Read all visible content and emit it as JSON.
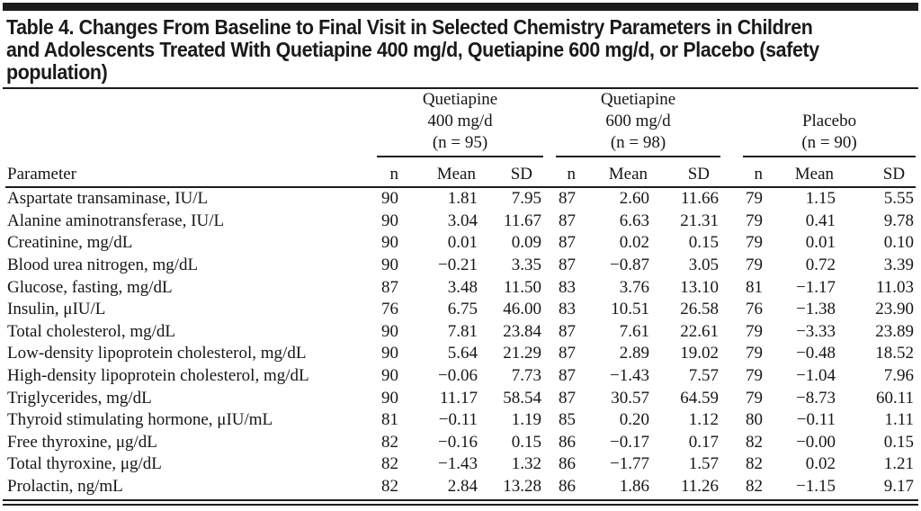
{
  "table": {
    "title_lines": [
      "Table 4. Changes From Baseline to Final Visit in Selected Chemistry Parameters in Children",
      "and Adolescents Treated With Quetiapine 400 mg/d, Quetiapine 600 mg/d, or Placebo (safety",
      "population)"
    ],
    "param_header": "Parameter",
    "sub_headers": [
      "n",
      "Mean",
      "SD"
    ],
    "groups": [
      {
        "lines": [
          "Quetiapine",
          "400 mg/d",
          "(n = 95)"
        ]
      },
      {
        "lines": [
          "Quetiapine",
          "600 mg/d",
          "(n = 98)"
        ]
      },
      {
        "lines": [
          "Placebo",
          "(n = 90)"
        ]
      }
    ],
    "rows": [
      {
        "parameter": "Aspartate transaminase, IU/L",
        "values": [
          "90",
          "1.81",
          "7.95",
          "87",
          "2.60",
          "11.66",
          "79",
          "1.15",
          "5.55"
        ]
      },
      {
        "parameter": "Alanine aminotransferase, IU/L",
        "values": [
          "90",
          "3.04",
          "11.67",
          "87",
          "6.63",
          "21.31",
          "79",
          "0.41",
          "9.78"
        ]
      },
      {
        "parameter": "Creatinine, mg/dL",
        "values": [
          "90",
          "0.01",
          "0.09",
          "87",
          "0.02",
          "0.15",
          "79",
          "0.01",
          "0.10"
        ]
      },
      {
        "parameter": "Blood urea nitrogen, mg/dL",
        "values": [
          "90",
          "−0.21",
          "3.35",
          "87",
          "−0.87",
          "3.05",
          "79",
          "0.72",
          "3.39"
        ]
      },
      {
        "parameter": "Glucose, fasting, mg/dL",
        "values": [
          "87",
          "3.48",
          "11.50",
          "83",
          "3.76",
          "13.10",
          "81",
          "−1.17",
          "11.03"
        ]
      },
      {
        "parameter": "Insulin, μIU/L",
        "values": [
          "76",
          "6.75",
          "46.00",
          "83",
          "10.51",
          "26.58",
          "76",
          "−1.38",
          "23.90"
        ]
      },
      {
        "parameter": "Total cholesterol, mg/dL",
        "values": [
          "90",
          "7.81",
          "23.84",
          "87",
          "7.61",
          "22.61",
          "79",
          "−3.33",
          "23.89"
        ]
      },
      {
        "parameter": "Low-density lipoprotein cholesterol, mg/dL",
        "values": [
          "90",
          "5.64",
          "21.29",
          "87",
          "2.89",
          "19.02",
          "79",
          "−0.48",
          "18.52"
        ]
      },
      {
        "parameter": "High-density lipoprotein cholesterol, mg/dL",
        "values": [
          "90",
          "−0.06",
          "7.73",
          "87",
          "−1.43",
          "7.57",
          "79",
          "−1.04",
          "7.96"
        ]
      },
      {
        "parameter": "Triglycerides, mg/dL",
        "values": [
          "90",
          "11.17",
          "58.54",
          "87",
          "30.57",
          "64.59",
          "79",
          "−8.73",
          "60.11"
        ]
      },
      {
        "parameter": "Thyroid stimulating hormone, μIU/mL",
        "values": [
          "81",
          "−0.11",
          "1.19",
          "85",
          "0.20",
          "1.12",
          "80",
          "−0.11",
          "1.11"
        ]
      },
      {
        "parameter": "Free thyroxine, μg/dL",
        "values": [
          "82",
          "−0.16",
          "0.15",
          "86",
          "−0.17",
          "0.17",
          "82",
          "−0.00",
          "0.15"
        ]
      },
      {
        "parameter": "Total thyroxine, μg/dL",
        "values": [
          "82",
          "−1.43",
          "1.32",
          "86",
          "−1.77",
          "1.57",
          "82",
          "0.02",
          "1.21"
        ]
      },
      {
        "parameter": "Prolactin, ng/mL",
        "values": [
          "82",
          "2.84",
          "13.28",
          "86",
          "1.86",
          "11.26",
          "82",
          "−1.15",
          "9.17"
        ]
      }
    ]
  }
}
